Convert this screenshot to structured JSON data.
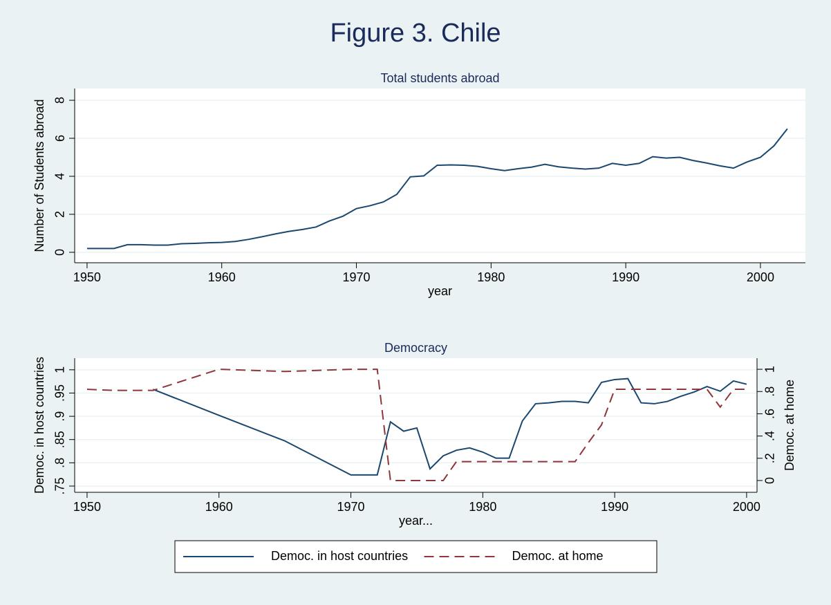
{
  "title": "Figure 3. Chile",
  "chart_data": [
    {
      "type": "line",
      "title": "Total students abroad",
      "x_label": "year",
      "y_label": "Number of Students abroad",
      "x": [
        1950,
        1951,
        1952,
        1953,
        1954,
        1955,
        1956,
        1957,
        1958,
        1959,
        1960,
        1961,
        1962,
        1963,
        1964,
        1965,
        1966,
        1967,
        1968,
        1969,
        1970,
        1971,
        1972,
        1973,
        1974,
        1975,
        1976,
        1977,
        1978,
        1979,
        1980,
        1981,
        1982,
        1983,
        1984,
        1985,
        1986,
        1987,
        1988,
        1989,
        1990,
        1991,
        1992,
        1993,
        1994,
        1995,
        1996,
        1997,
        1998,
        1999,
        2000,
        2001,
        2002
      ],
      "series": [
        {
          "name": "Total students abroad",
          "color": "#1a476f",
          "line_style": "solid",
          "values": [
            0.2,
            0.2,
            0.2,
            0.4,
            0.4,
            0.38,
            0.38,
            0.45,
            0.47,
            0.5,
            0.52,
            0.57,
            0.68,
            0.82,
            0.97,
            1.1,
            1.2,
            1.33,
            1.65,
            1.9,
            2.3,
            2.45,
            2.65,
            3.05,
            3.97,
            4.02,
            4.58,
            4.6,
            4.58,
            4.52,
            4.4,
            4.3,
            4.4,
            4.48,
            4.63,
            4.5,
            4.43,
            4.38,
            4.43,
            4.68,
            4.58,
            4.68,
            5.03,
            4.96,
            5.0,
            4.83,
            4.7,
            4.55,
            4.43,
            4.75,
            5.0,
            5.6,
            6.5
          ]
        }
      ],
      "xlim": [
        1949.08,
        2003.34
      ],
      "xticks": [
        1950,
        1960,
        1970,
        1980,
        1990,
        2000
      ],
      "ylim": [
        -0.55,
        8.62
      ],
      "yticks": [
        0,
        2,
        4,
        6,
        8
      ],
      "grid": true
    },
    {
      "type": "line",
      "title": "Democracy",
      "x_label": "year...",
      "y_label": "Democ. in host countries",
      "y2_label": "Democ. at home",
      "series": [
        {
          "name": "Democ. in host countries",
          "color": "#1a476f",
          "line_style": "solid",
          "axis": "y",
          "x": [
            1955,
            1960,
            1965,
            1970,
            1972,
            1973,
            1974,
            1975,
            1976,
            1977,
            1978,
            1979,
            1980,
            1981,
            1982,
            1983,
            1984,
            1985,
            1986,
            1987,
            1988,
            1989,
            1990,
            1991,
            1992,
            1993,
            1994,
            1995,
            1996,
            1997,
            1998,
            1999,
            2000
          ],
          "values": [
            0.958,
            0.902,
            0.847,
            0.774,
            0.774,
            0.888,
            0.868,
            0.875,
            0.787,
            0.815,
            0.827,
            0.832,
            0.823,
            0.81,
            0.81,
            0.89,
            0.927,
            0.929,
            0.932,
            0.932,
            0.929,
            0.973,
            0.979,
            0.981,
            0.929,
            0.927,
            0.932,
            0.943,
            0.952,
            0.964,
            0.954,
            0.976,
            0.969
          ]
        },
        {
          "name": "Democ. at home",
          "color": "#90353b",
          "line_style": "dashed",
          "axis": "y2",
          "x": [
            1950,
            1952,
            1955,
            1960,
            1965,
            1970,
            1972,
            1973,
            1977,
            1978,
            1987,
            1988,
            1989,
            1990,
            1997,
            1998,
            1999,
            2000
          ],
          "values": [
            0.82,
            0.81,
            0.81,
            1.0,
            0.98,
            1.0,
            1.0,
            0,
            0,
            0.17,
            0.17,
            0.34,
            0.5,
            0.82,
            0.82,
            0.66,
            0.82,
            0.82
          ]
        }
      ],
      "xlim": [
        1949.06,
        2000.79
      ],
      "xticks": [
        1950,
        1960,
        1970,
        1980,
        1990,
        2000
      ],
      "ylim": [
        0.7366,
        1.025
      ],
      "yticks": [
        {
          "value": 0.75,
          "label": ".75"
        },
        {
          "value": 0.8,
          "label": ".8"
        },
        {
          "value": 0.85,
          "label": ".85"
        },
        {
          "value": 0.9,
          "label": ".9"
        },
        {
          "value": 0.95,
          "label": ".95"
        },
        1
      ],
      "y2lim": [
        -0.106,
        1.1
      ],
      "y2ticks": [
        0,
        {
          "value": 0.2,
          "label": ".2"
        },
        {
          "value": 0.4,
          "label": ".4"
        },
        {
          "value": 0.6,
          "label": ".6"
        },
        {
          "value": 0.8,
          "label": ".8"
        },
        1
      ],
      "grid": true,
      "legend": "bottom"
    }
  ]
}
